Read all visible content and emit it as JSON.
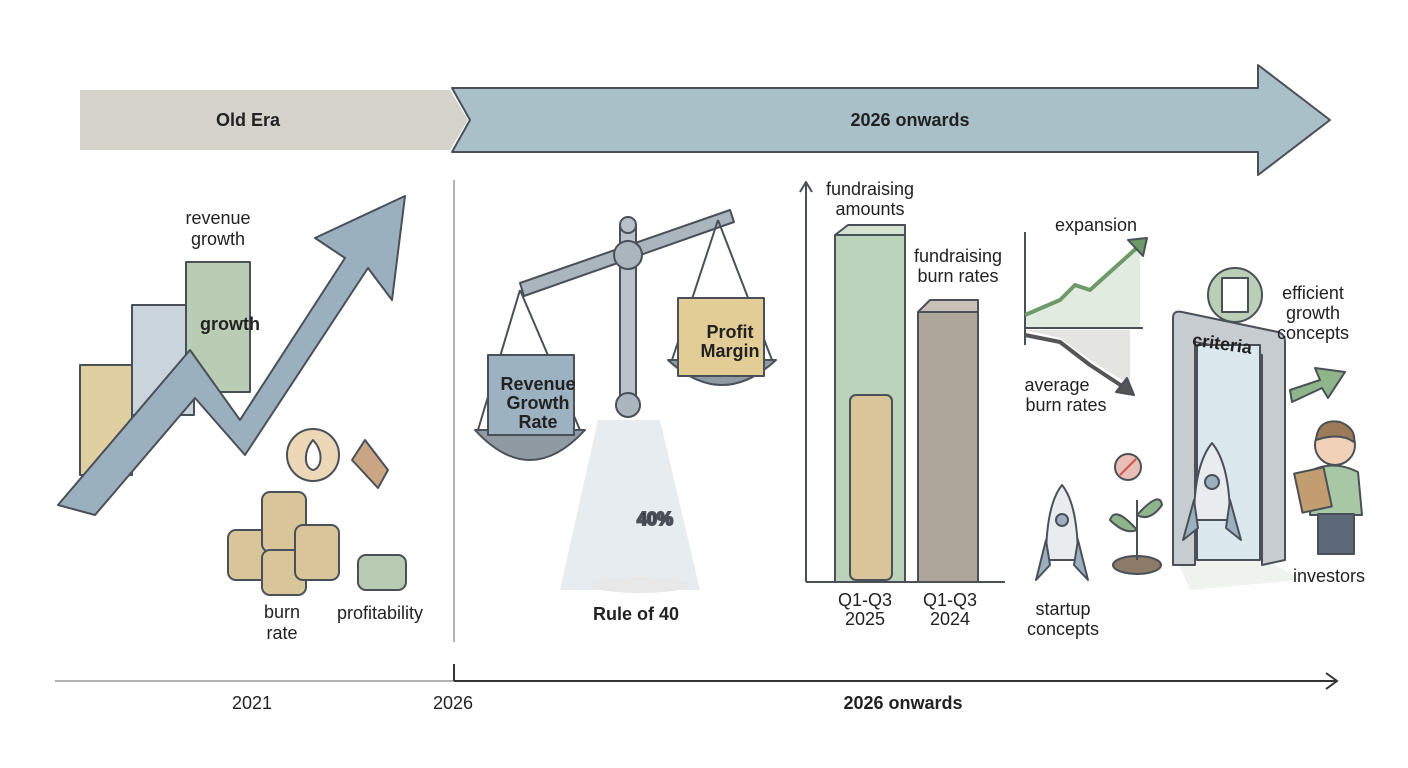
{
  "header": {
    "old_era": "Old Era",
    "new_era": "2026 onwards"
  },
  "old_era": {
    "revenue_growth": [
      "revenue",
      "growth"
    ],
    "bar_label": "growth",
    "burn_rate": [
      "burn",
      "rate"
    ],
    "profitability": "profitability"
  },
  "rule_of_40": {
    "left_box": [
      "Revenue",
      "Growth",
      "Rate"
    ],
    "right_box": [
      "Profit",
      "Margin"
    ],
    "big_number": "40%",
    "caption": "Rule of 40"
  },
  "fundraising": {
    "amounts": [
      "fundraising",
      "amounts"
    ],
    "burn_rates": [
      "fundraising",
      "burn rates"
    ],
    "period_2025": [
      "Q1-Q3",
      "2025"
    ],
    "period_2024": [
      "Q1-Q3",
      "2024"
    ]
  },
  "trends": {
    "expansion": "expansion",
    "average_burn_rates": [
      "average",
      "burn rates"
    ]
  },
  "gate": {
    "criteria": "criteria",
    "efficient": [
      "efficient",
      "growth",
      "concepts"
    ],
    "startup": [
      "startup",
      "concepts"
    ],
    "investors": "investors"
  },
  "timeline": {
    "start": "2021",
    "mid": "2026",
    "end": "2026 onwards"
  }
}
